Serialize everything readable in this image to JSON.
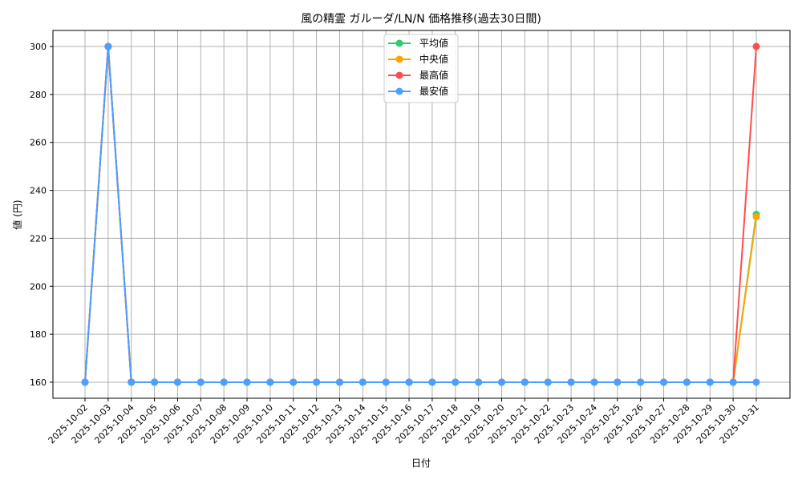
{
  "chart_data": {
    "type": "line",
    "title": "風の精霊 ガルーダ/LN/N 価格推移(過去30日間)",
    "xlabel": "日付",
    "ylabel": "値 (円)",
    "ylim": [
      153.3,
      306.7
    ],
    "yticks": [
      160,
      180,
      200,
      220,
      240,
      260,
      280,
      300
    ],
    "grid": true,
    "legend_position": "top-center",
    "categories": [
      "2025-10-02",
      "2025-10-03",
      "2025-10-04",
      "2025-10-05",
      "2025-10-06",
      "2025-10-07",
      "2025-10-08",
      "2025-10-09",
      "2025-10-10",
      "2025-10-11",
      "2025-10-12",
      "2025-10-13",
      "2025-10-14",
      "2025-10-15",
      "2025-10-16",
      "2025-10-17",
      "2025-10-18",
      "2025-10-19",
      "2025-10-20",
      "2025-10-21",
      "2025-10-22",
      "2025-10-23",
      "2025-10-24",
      "2025-10-25",
      "2025-10-26",
      "2025-10-27",
      "2025-10-28",
      "2025-10-29",
      "2025-10-30",
      "2025-10-31"
    ],
    "series": [
      {
        "name": "平均値",
        "color": "#2ecc71",
        "values": [
          160,
          300,
          160,
          160,
          160,
          160,
          160,
          160,
          160,
          160,
          160,
          160,
          160,
          160,
          160,
          160,
          160,
          160,
          160,
          160,
          160,
          160,
          160,
          160,
          160,
          160,
          160,
          160,
          160,
          230
        ]
      },
      {
        "name": "中央値",
        "color": "#ffa500",
        "values": [
          160,
          300,
          160,
          160,
          160,
          160,
          160,
          160,
          160,
          160,
          160,
          160,
          160,
          160,
          160,
          160,
          160,
          160,
          160,
          160,
          160,
          160,
          160,
          160,
          160,
          160,
          160,
          160,
          160,
          229
        ]
      },
      {
        "name": "最高値",
        "color": "#ff4d4d",
        "values": [
          160,
          300,
          160,
          160,
          160,
          160,
          160,
          160,
          160,
          160,
          160,
          160,
          160,
          160,
          160,
          160,
          160,
          160,
          160,
          160,
          160,
          160,
          160,
          160,
          160,
          160,
          160,
          160,
          160,
          300
        ]
      },
      {
        "name": "最安値",
        "color": "#4d9fff",
        "values": [
          160,
          300,
          160,
          160,
          160,
          160,
          160,
          160,
          160,
          160,
          160,
          160,
          160,
          160,
          160,
          160,
          160,
          160,
          160,
          160,
          160,
          160,
          160,
          160,
          160,
          160,
          160,
          160,
          160,
          160
        ]
      }
    ]
  }
}
